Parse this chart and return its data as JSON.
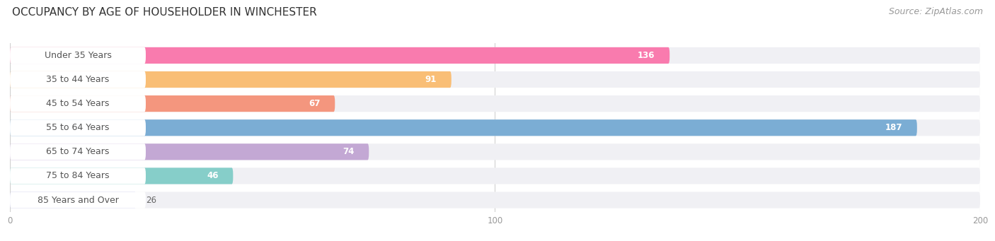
{
  "categories": [
    "Under 35 Years",
    "35 to 44 Years",
    "45 to 54 Years",
    "55 to 64 Years",
    "65 to 74 Years",
    "75 to 84 Years",
    "85 Years and Over"
  ],
  "values": [
    136,
    91,
    67,
    187,
    74,
    46,
    26
  ],
  "bar_colors": [
    "#F97BAE",
    "#F9BE76",
    "#F4967E",
    "#7BADD4",
    "#C3A8D4",
    "#86CEC9",
    "#BABAE8"
  ],
  "bar_bg_colors": [
    "#F0F0F4",
    "#F0F0F4",
    "#F0F0F4",
    "#F0F0F4",
    "#F0F0F4",
    "#F0F0F4",
    "#F0F0F4"
  ],
  "label_bg_color": "#FFFFFF",
  "title": "OCCUPANCY BY AGE OF HOUSEHOLDER IN WINCHESTER",
  "source": "Source: ZipAtlas.com",
  "xlim": [
    0,
    200
  ],
  "xticks": [
    0,
    100,
    200
  ],
  "title_fontsize": 11,
  "source_fontsize": 9,
  "label_fontsize": 9,
  "value_fontsize": 8.5,
  "bg_color": "#FFFFFF",
  "row_bg_color": "#F0F0F4"
}
